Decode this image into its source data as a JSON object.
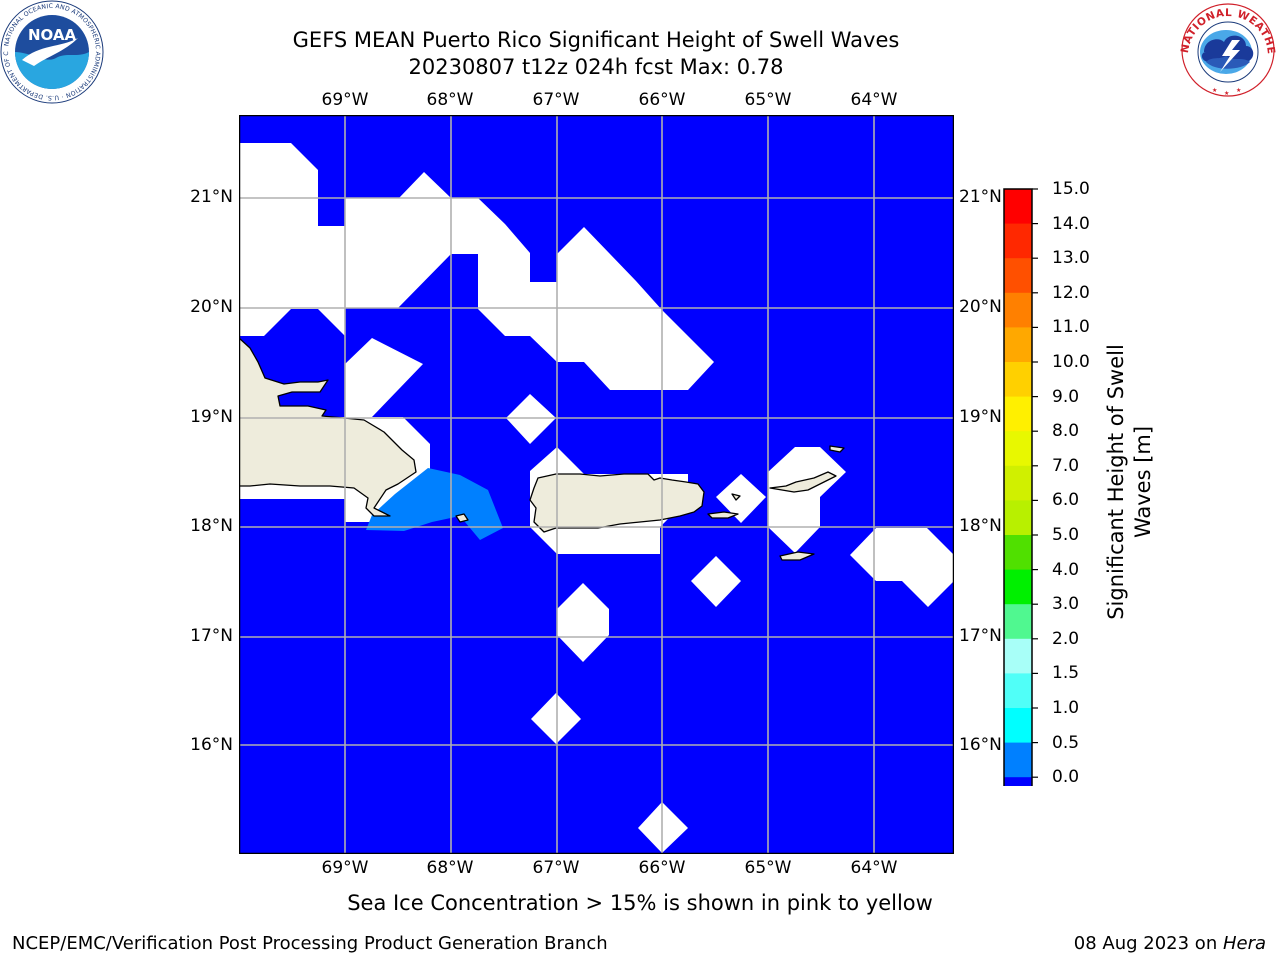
{
  "title": {
    "line1": "GEFS MEAN Puerto Rico Significant Height of Swell Waves",
    "line2": "20230807 t12z 024h fcst   Max: 0.78"
  },
  "lon_labels": [
    "69°W",
    "68°W",
    "67°W",
    "66°W",
    "65°W",
    "64°W"
  ],
  "lat_labels": [
    "21°N",
    "20°N",
    "19°N",
    "18°N",
    "17°N",
    "16°N"
  ],
  "colorbar": {
    "label_line1": "Significant Height of Swell",
    "label_line2": "Waves [m]",
    "ticks": [
      "15.0",
      "14.0",
      "13.0",
      "12.0",
      "11.0",
      "10.0",
      "9.0",
      "8.0",
      "7.0",
      "6.0",
      "5.0",
      "4.0",
      "3.0",
      "2.0",
      "1.5",
      "1.0",
      "0.5",
      "0.0"
    ],
    "colors": [
      "#ff0000",
      "#ff2800",
      "#ff5000",
      "#ff8000",
      "#ffa800",
      "#ffd000",
      "#fff000",
      "#e8f800",
      "#d0f000",
      "#b8f000",
      "#50e000",
      "#00f000",
      "#50f890",
      "#a8fff8",
      "#50fff8",
      "#00ffff",
      "#0080ff",
      "#0000ff"
    ]
  },
  "caption": "Sea Ice Concentration > 15% is shown in pink to yellow",
  "footer": {
    "left": "NCEP/EMC/Verification Post Processing Product Generation Branch",
    "right_date": "08 Aug 2023 on ",
    "right_host": "Hera"
  },
  "logos": {
    "noaa": {
      "text": "NOAA",
      "ring_text": "NATIONAL OCEANIC AND ATMOSPHERIC ADMINISTRATION · U.S. DEPARTMENT OF COMMERCE"
    },
    "nws": {
      "ring_text": "NATIONAL WEATHER SERVICE"
    }
  },
  "map_colors": {
    "ocean": "#0000ff",
    "land": "#eeecdc",
    "nodata": "#ffffff",
    "swell_05_1": "#0080ff"
  }
}
